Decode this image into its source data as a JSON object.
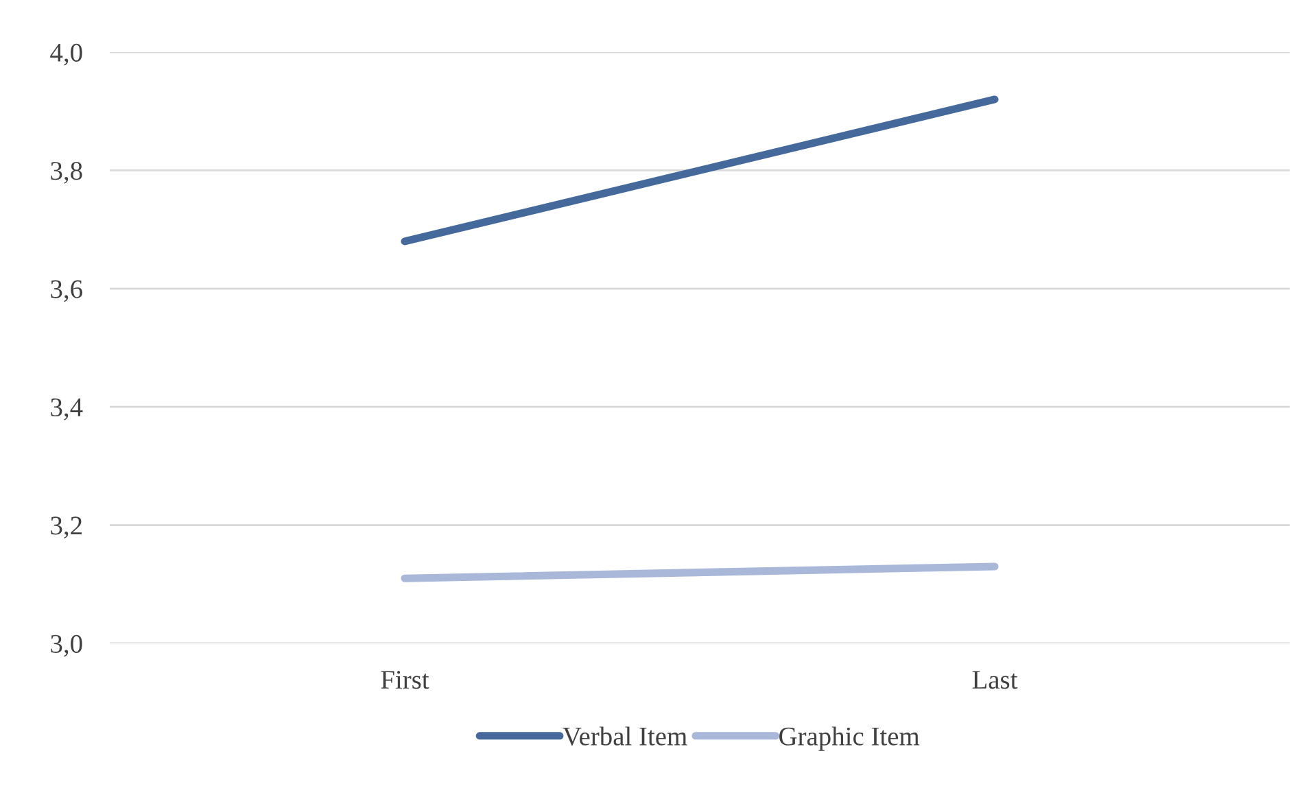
{
  "chart_data": {
    "type": "line",
    "categories": [
      "First",
      "Last"
    ],
    "series": [
      {
        "name": "Verbal Item",
        "color": "#44699a",
        "values": [
          3.68,
          3.92
        ]
      },
      {
        "name": "Graphic Item",
        "color": "#a9b8d8",
        "values": [
          3.11,
          3.13
        ]
      }
    ],
    "ylim": [
      3.0,
      4.0
    ],
    "yticks": [
      {
        "value": 3.0,
        "label": "3,0"
      },
      {
        "value": 3.2,
        "label": "3,2"
      },
      {
        "value": 3.4,
        "label": "3,4"
      },
      {
        "value": 3.6,
        "label": "3,6"
      },
      {
        "value": 3.8,
        "label": "3,8"
      },
      {
        "value": 4.0,
        "label": "4,0"
      }
    ],
    "grid": "y",
    "legend": "bottom",
    "marker": "none",
    "line_style": "solid"
  }
}
